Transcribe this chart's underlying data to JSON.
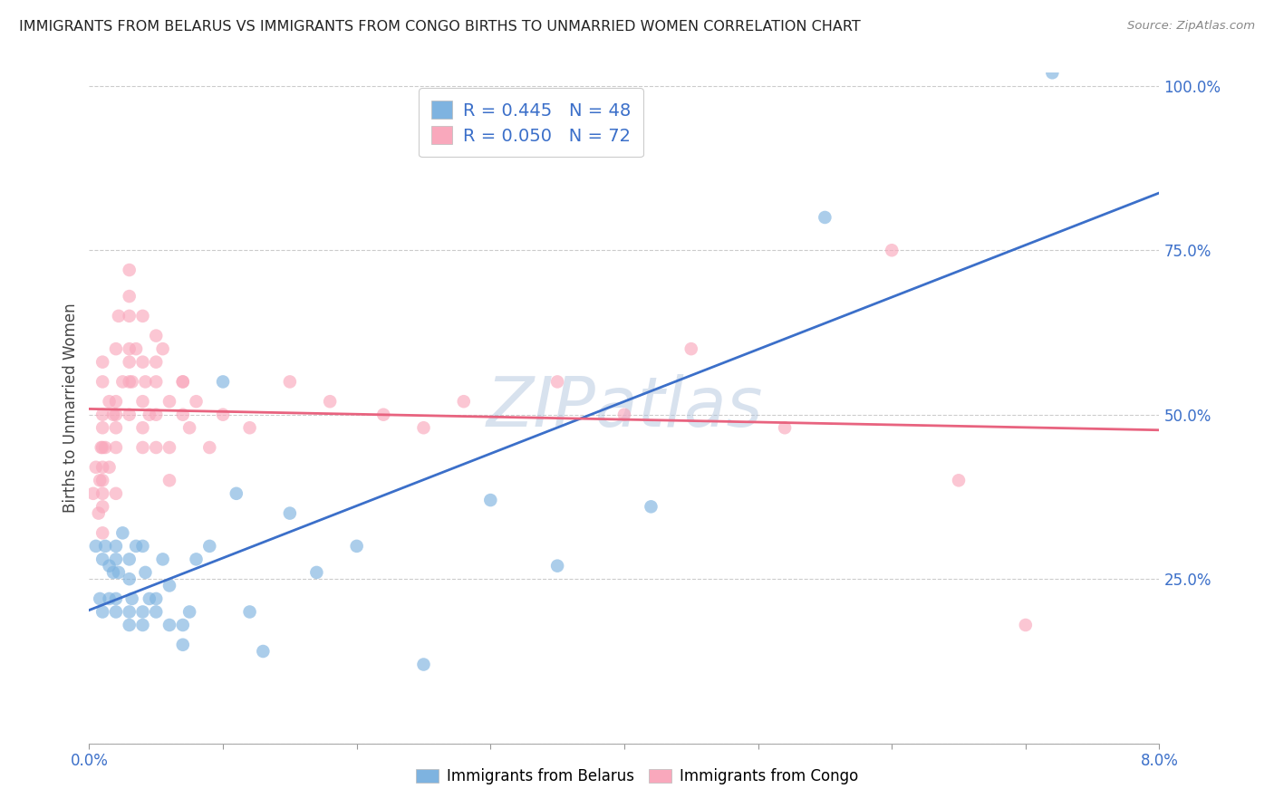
{
  "title": "IMMIGRANTS FROM BELARUS VS IMMIGRANTS FROM CONGO BIRTHS TO UNMARRIED WOMEN CORRELATION CHART",
  "source": "Source: ZipAtlas.com",
  "ylabel": "Births to Unmarried Women",
  "x_min": 0.0,
  "x_max": 0.08,
  "y_min": 0.0,
  "y_max": 1.0,
  "yticks": [
    0.0,
    0.25,
    0.5,
    0.75,
    1.0
  ],
  "ytick_labels": [
    "",
    "25.0%",
    "50.0%",
    "75.0%",
    "100.0%"
  ],
  "xticks": [
    0.0,
    0.01,
    0.02,
    0.03,
    0.04,
    0.05,
    0.06,
    0.07,
    0.08
  ],
  "legend_r_belarus": "R = 0.445",
  "legend_n_belarus": "N = 48",
  "legend_r_congo": "R = 0.050",
  "legend_n_congo": "N = 72",
  "color_belarus": "#7EB3E0",
  "color_congo": "#F9A8BC",
  "line_color_belarus": "#3B6FC9",
  "line_color_congo": "#E8637F",
  "watermark": "ZIPatlas",
  "watermark_color": "#AABFDB",
  "belarus_x": [
    0.0005,
    0.0008,
    0.001,
    0.001,
    0.0012,
    0.0015,
    0.0015,
    0.0018,
    0.002,
    0.002,
    0.002,
    0.002,
    0.0022,
    0.0025,
    0.003,
    0.003,
    0.003,
    0.003,
    0.0032,
    0.0035,
    0.004,
    0.004,
    0.004,
    0.0042,
    0.0045,
    0.005,
    0.005,
    0.0055,
    0.006,
    0.006,
    0.007,
    0.007,
    0.0075,
    0.008,
    0.009,
    0.01,
    0.011,
    0.012,
    0.013,
    0.015,
    0.017,
    0.02,
    0.025,
    0.03,
    0.035,
    0.042,
    0.055,
    0.072
  ],
  "belarus_y": [
    0.3,
    0.22,
    0.28,
    0.2,
    0.3,
    0.27,
    0.22,
    0.26,
    0.3,
    0.28,
    0.22,
    0.2,
    0.26,
    0.32,
    0.25,
    0.28,
    0.2,
    0.18,
    0.22,
    0.3,
    0.18,
    0.2,
    0.3,
    0.26,
    0.22,
    0.2,
    0.22,
    0.28,
    0.24,
    0.18,
    0.15,
    0.18,
    0.2,
    0.28,
    0.3,
    0.55,
    0.38,
    0.2,
    0.14,
    0.35,
    0.26,
    0.3,
    0.12,
    0.37,
    0.27,
    0.36,
    0.8,
    1.02
  ],
  "congo_x": [
    0.0003,
    0.0005,
    0.0007,
    0.0008,
    0.0009,
    0.001,
    0.001,
    0.001,
    0.001,
    0.001,
    0.001,
    0.001,
    0.001,
    0.001,
    0.001,
    0.0012,
    0.0015,
    0.0015,
    0.0018,
    0.002,
    0.002,
    0.002,
    0.002,
    0.002,
    0.002,
    0.0022,
    0.0025,
    0.003,
    0.003,
    0.003,
    0.003,
    0.003,
    0.003,
    0.003,
    0.0032,
    0.0035,
    0.004,
    0.004,
    0.004,
    0.004,
    0.004,
    0.0042,
    0.0045,
    0.005,
    0.005,
    0.005,
    0.005,
    0.005,
    0.0055,
    0.006,
    0.006,
    0.006,
    0.007,
    0.007,
    0.007,
    0.0075,
    0.008,
    0.009,
    0.01,
    0.012,
    0.015,
    0.018,
    0.022,
    0.025,
    0.028,
    0.035,
    0.04,
    0.045,
    0.052,
    0.06,
    0.065,
    0.07
  ],
  "congo_y": [
    0.38,
    0.42,
    0.35,
    0.4,
    0.45,
    0.38,
    0.32,
    0.42,
    0.45,
    0.48,
    0.36,
    0.5,
    0.55,
    0.4,
    0.58,
    0.45,
    0.52,
    0.42,
    0.5,
    0.45,
    0.6,
    0.5,
    0.48,
    0.38,
    0.52,
    0.65,
    0.55,
    0.68,
    0.72,
    0.58,
    0.65,
    0.6,
    0.55,
    0.5,
    0.55,
    0.6,
    0.48,
    0.52,
    0.45,
    0.58,
    0.65,
    0.55,
    0.5,
    0.58,
    0.62,
    0.45,
    0.5,
    0.55,
    0.6,
    0.4,
    0.52,
    0.45,
    0.55,
    0.5,
    0.55,
    0.48,
    0.52,
    0.45,
    0.5,
    0.48,
    0.55,
    0.52,
    0.5,
    0.48,
    0.52,
    0.55,
    0.5,
    0.6,
    0.48,
    0.75,
    0.4,
    0.18
  ]
}
